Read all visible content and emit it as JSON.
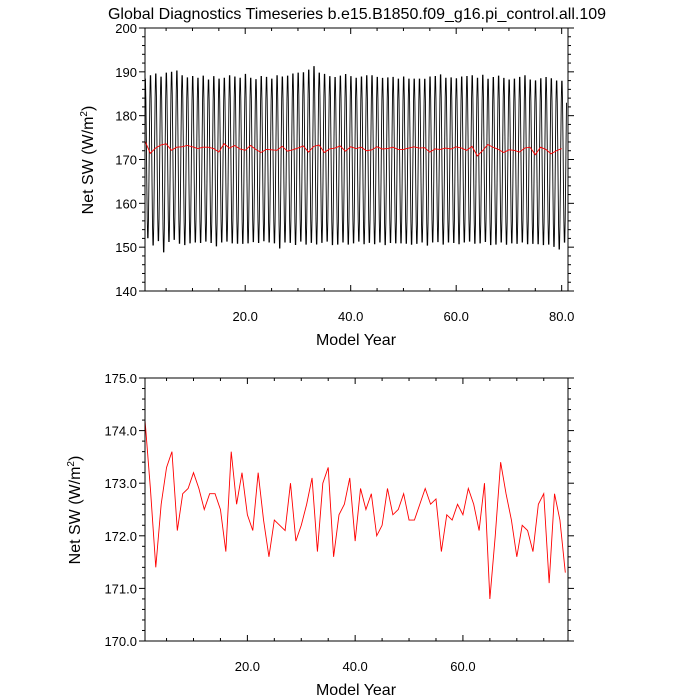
{
  "chart_data": [
    {
      "type": "line",
      "title": "Global Diagnostics Timeseries b.e15.B1850.f09_g16.pi_control.all.109",
      "xlabel": "Model Year",
      "ylabel_main": "Net SW (W/m",
      "ylabel_sup": "2",
      "ylabel_close": ")",
      "xlim": [
        1,
        81.2
      ],
      "ylim": [
        140,
        200
      ],
      "xticks": [
        20,
        40,
        60,
        80
      ],
      "xtick_labels": [
        "20.0",
        "40.0",
        "60.0",
        "80.0"
      ],
      "yticks": [
        140,
        150,
        160,
        170,
        180,
        190,
        200
      ],
      "ytick_labels": [
        "140",
        "150",
        "160",
        "170",
        "180",
        "190",
        "200"
      ],
      "monthly_min": [
        151.5,
        149.8,
        150.8,
        148.2,
        150.6,
        151.1,
        150.2,
        149.9,
        150.3,
        150.5,
        150.4,
        150.7,
        150.4,
        149.6,
        150.5,
        150.7,
        150.3,
        150.2,
        150.2,
        150.3,
        150.6,
        150.4,
        150.8,
        150.5,
        150.3,
        149.1,
        150.5,
        150.4,
        149.9,
        150.7,
        150.0,
        150.4,
        150.0,
        150.4,
        150.7,
        149.9,
        150.0,
        150.5,
        150.0,
        150.3,
        150.7,
        150.1,
        150.4,
        150.1,
        150.5,
        149.9,
        150.4,
        150.3,
        150.3,
        150.2,
        150.0,
        150.2,
        150.5,
        149.8,
        150.5,
        150.6,
        150.0,
        150.5,
        150.4,
        150.1,
        150.5,
        150.7,
        150.2,
        150.3,
        150.6,
        149.9,
        150.0,
        150.5,
        150.0,
        150.3,
        150.2,
        150.5,
        150.1,
        150.2,
        150.1,
        149.9,
        150.0,
        149.5,
        148.9,
        150.5
      ],
      "monthly_max": [
        189.0,
        189.8,
        190.2,
        189.5,
        190.4,
        190.6,
        190.9,
        189.8,
        189.3,
        189.6,
        189.2,
        189.7,
        188.8,
        189.6,
        189.0,
        189.2,
        189.8,
        189.5,
        189.2,
        190.1,
        189.2,
        188.9,
        189.6,
        189.4,
        189.0,
        189.8,
        189.5,
        189.7,
        190.2,
        190.4,
        190.5,
        191.1,
        191.9,
        190.4,
        190.1,
        189.6,
        189.4,
        189.7,
        190.1,
        189.6,
        189.2,
        189.5,
        189.8,
        189.8,
        189.4,
        189.2,
        189.3,
        189.4,
        189.0,
        189.5,
        189.0,
        189.0,
        189.0,
        189.0,
        189.5,
        189.6,
        190.0,
        189.2,
        189.3,
        189.1,
        189.5,
        189.6,
        189.8,
        189.2,
        189.9,
        189.0,
        189.4,
        189.7,
        189.2,
        188.8,
        189.0,
        189.4,
        189.8,
        188.8,
        188.6,
        189.1,
        189.4,
        189.1,
        188.6,
        188.5
      ],
      "series": [
        {
          "name": "",
          "color": "#000000",
          "style": "monthly-seasonal-cycle"
        },
        {
          "name": "",
          "color": "#ff0000",
          "values": [
            174.2,
            171.4,
            172.6,
            173.3,
            173.6,
            172.1,
            172.8,
            172.9,
            173.2,
            172.9,
            172.5,
            172.8,
            172.8,
            172.5,
            171.7,
            173.6,
            172.6,
            173.2,
            172.4,
            172.1,
            173.2,
            172.3,
            171.6,
            172.3,
            172.2,
            172.1,
            173.0,
            171.9,
            172.2,
            172.6,
            173.1,
            171.7,
            173.0,
            173.3,
            171.6,
            172.4,
            172.6,
            173.1,
            171.9,
            172.9,
            172.5,
            172.8,
            172.0,
            172.2,
            172.9,
            172.4,
            172.5,
            172.8,
            172.3,
            172.3,
            172.6,
            172.9,
            172.6,
            172.7,
            171.7,
            172.4,
            172.3,
            172.6,
            172.4,
            172.9,
            172.6,
            172.1,
            173.0,
            170.8,
            172.0,
            173.4,
            172.8,
            172.3,
            171.6,
            172.2,
            172.1,
            171.7,
            172.6,
            172.8,
            171.1,
            172.8,
            172.3,
            171.3,
            172.0,
            172.5
          ]
        }
      ]
    },
    {
      "type": "line",
      "title": "",
      "xlabel": "Model Year",
      "ylabel_main": "Net SW (W/m",
      "ylabel_sup": "2",
      "ylabel_close": ")",
      "xlim": [
        1,
        79.5
      ],
      "ylim": [
        170,
        175
      ],
      "xticks": [
        20,
        40,
        60
      ],
      "xtick_labels": [
        "20.0",
        "40.0",
        "60.0"
      ],
      "yticks": [
        170,
        171,
        172,
        173,
        174,
        175
      ],
      "ytick_labels": [
        "170.0",
        "171.0",
        "172.0",
        "173.0",
        "174.0",
        "175.0"
      ],
      "series": [
        {
          "name": "",
          "color": "#ff0000",
          "values": [
            174.2,
            172.9,
            171.4,
            172.6,
            173.3,
            173.6,
            172.1,
            172.8,
            172.9,
            173.2,
            172.9,
            172.5,
            172.8,
            172.8,
            172.5,
            171.7,
            173.6,
            172.6,
            173.2,
            172.4,
            172.1,
            173.2,
            172.3,
            171.6,
            172.3,
            172.2,
            172.1,
            173.0,
            171.9,
            172.2,
            172.6,
            173.1,
            171.7,
            173.0,
            173.3,
            171.6,
            172.4,
            172.6,
            173.1,
            171.9,
            172.9,
            172.5,
            172.8,
            172.0,
            172.2,
            172.9,
            172.4,
            172.5,
            172.8,
            172.3,
            172.3,
            172.6,
            172.9,
            172.6,
            172.7,
            171.7,
            172.4,
            172.3,
            172.6,
            172.4,
            172.9,
            172.6,
            172.1,
            173.0,
            170.8,
            172.0,
            173.4,
            172.8,
            172.3,
            171.6,
            172.2,
            172.1,
            171.7,
            172.6,
            172.8,
            171.1,
            172.8,
            172.3,
            171.3
          ]
        }
      ]
    }
  ]
}
